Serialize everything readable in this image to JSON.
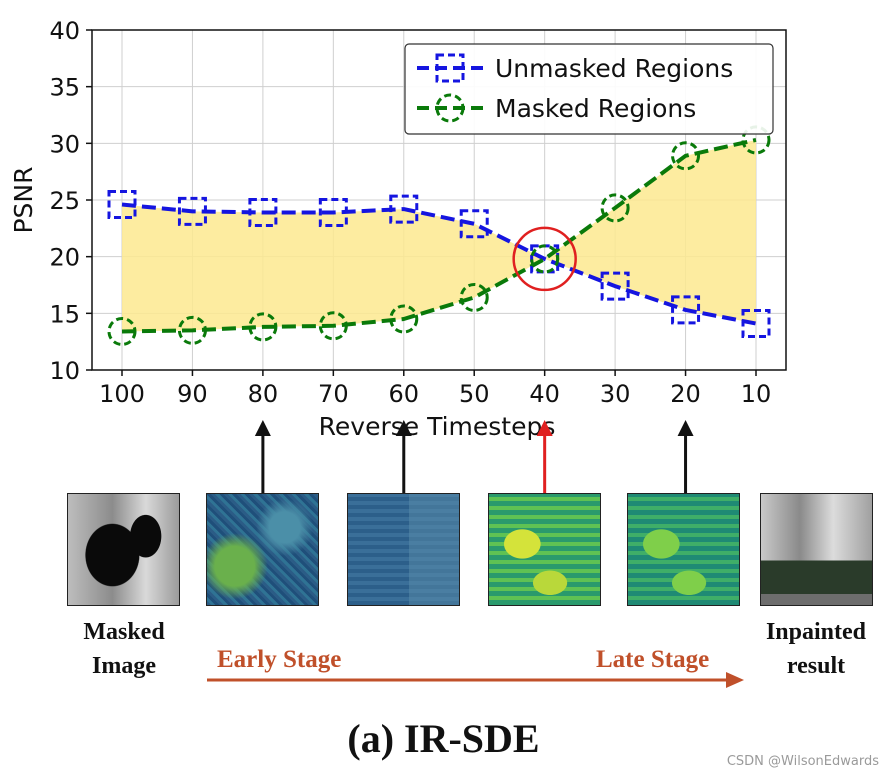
{
  "chart_data": {
    "type": "line",
    "x": [
      100,
      90,
      80,
      70,
      60,
      50,
      40,
      30,
      20,
      10
    ],
    "xlabel": "Reverse Timesteps",
    "ylabel": "PSNR",
    "ylim": [
      10,
      40
    ],
    "yticks": [
      10,
      15,
      20,
      25,
      30,
      35,
      40
    ],
    "xtick_labels": [
      "100",
      "90",
      "80",
      "70",
      "60",
      "50",
      "40",
      "30",
      "20",
      "10"
    ],
    "ytick_labels": [
      "10",
      "15",
      "20",
      "25",
      "30",
      "35",
      "40"
    ],
    "grid": true,
    "legend_position": "top-right",
    "fill_between_series": true,
    "fill_color": "#fde98f",
    "highlight_x": 40,
    "highlight_color": "#e02020",
    "series": [
      {
        "name": "Unmasked Regions",
        "color": "#1515e0",
        "marker": "square",
        "linestyle": "dashed",
        "values": [
          24.6,
          24.0,
          23.9,
          23.9,
          24.2,
          22.9,
          19.8,
          17.4,
          15.3,
          14.1
        ]
      },
      {
        "name": "Masked Regions",
        "color": "#0a7a0a",
        "marker": "circle",
        "linestyle": "dashed",
        "values": [
          13.4,
          13.5,
          13.8,
          13.9,
          14.5,
          16.4,
          19.8,
          24.3,
          28.9,
          30.3
        ]
      }
    ]
  },
  "arrows": [
    {
      "x_value": 80,
      "color": "#111111"
    },
    {
      "x_value": 60,
      "color": "#111111"
    },
    {
      "x_value": 40,
      "color": "#e02020"
    },
    {
      "x_value": 20,
      "color": "#111111"
    }
  ],
  "captions": {
    "masked_line1": "Masked",
    "masked_line2": "Image",
    "result_line1": "Inpainted",
    "result_line2": "result"
  },
  "stages": {
    "early": "Early Stage",
    "late": "Late Stage",
    "arrow_color": "#c0502a"
  },
  "figure_title": "(a) IR-SDE",
  "watermark": "CSDN @WilsonEdwards"
}
